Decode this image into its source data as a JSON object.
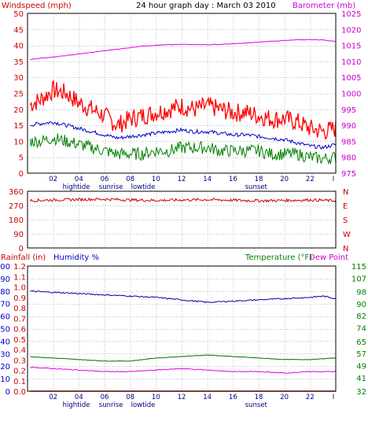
{
  "header": {
    "left_label": "Windspeed (mph)",
    "title": "24 hour graph day : March 03 2010",
    "right_label": "Barometer (mb)"
  },
  "lower_header": {
    "rainfall_label": "Rainfall (in)",
    "humidity_label": "Humidity %",
    "temperature_label": "Temperature (°F)",
    "dewpoint_label": "Dew Point"
  },
  "colors": {
    "windspeed": "#ff0000",
    "windavg": "#0000cc",
    "windgust_low": "#008000",
    "barometer": "#e000e0",
    "direction": "#cc0000",
    "humidity": "#0000aa",
    "temperature": "#007000",
    "dewpoint": "#e000e0",
    "rainfall": "#dd0000",
    "axis_left": "#cc0000",
    "axis_humidity": "#0000cc",
    "axis_right_green": "#008000",
    "axis_baro": "#cc00cc",
    "grid": "#c0c0c0",
    "frame": "#000000"
  },
  "time_axis": {
    "hour_labels": [
      "02",
      "04",
      "06",
      "08",
      "10",
      "12",
      "14",
      "16",
      "18",
      "20",
      "22",
      "I"
    ],
    "events": [
      {
        "label": "hightide",
        "hour": 3.8
      },
      {
        "label": "sunrise",
        "hour": 6.5
      },
      {
        "label": "lowtide",
        "hour": 9.0
      },
      {
        "label": "sunset",
        "hour": 17.8
      }
    ]
  },
  "chart_data": [
    {
      "type": "line",
      "name": "wind-and-barometer",
      "y_left_ticks": [
        0,
        5,
        10,
        15,
        20,
        25,
        30,
        35,
        40,
        45,
        50
      ],
      "y_left_range": [
        0,
        50
      ],
      "y_right_ticks": [
        975,
        980,
        985,
        990,
        995,
        1000,
        1005,
        1010,
        1015,
        1020,
        1025
      ],
      "y_right_range": [
        975,
        1025
      ],
      "x_range_hours": [
        0,
        24
      ],
      "series": [
        {
          "key": "windspeed",
          "axis": "left",
          "x": [
            0,
            1,
            2,
            3,
            4,
            5,
            6,
            7,
            8,
            9,
            10,
            11,
            12,
            13,
            14,
            15,
            16,
            17,
            18,
            19,
            20,
            21,
            22,
            23,
            24
          ],
          "values": [
            21,
            23,
            26,
            25,
            22,
            20,
            18,
            15,
            17,
            18,
            19,
            20,
            21,
            20,
            21,
            20,
            19,
            19,
            18,
            17,
            17,
            16,
            14,
            13,
            14
          ]
        },
        {
          "key": "windavg",
          "axis": "left",
          "x": [
            0,
            1,
            2,
            3,
            4,
            5,
            6,
            7,
            8,
            9,
            10,
            11,
            12,
            13,
            14,
            15,
            16,
            17,
            18,
            19,
            20,
            21,
            22,
            23,
            24
          ],
          "values": [
            15,
            15.5,
            16,
            15,
            14,
            13,
            12,
            11,
            11.5,
            12,
            12.5,
            13,
            13.5,
            13,
            13,
            12.5,
            12,
            12,
            11.5,
            11,
            10.5,
            9.5,
            8.5,
            8,
            9
          ]
        },
        {
          "key": "windgust_low",
          "axis": "left",
          "x": [
            0,
            1,
            2,
            3,
            4,
            5,
            6,
            7,
            8,
            9,
            10,
            11,
            12,
            13,
            14,
            15,
            16,
            17,
            18,
            19,
            20,
            21,
            22,
            23,
            24
          ],
          "values": [
            10,
            10,
            11,
            10,
            9,
            8,
            7,
            6,
            6,
            6,
            7,
            7,
            8,
            8,
            8,
            7,
            7,
            7,
            7,
            6,
            6,
            6,
            5,
            4.5,
            5
          ]
        },
        {
          "key": "barometer",
          "axis": "right",
          "x": [
            0,
            1,
            2,
            3,
            4,
            5,
            6,
            7,
            8,
            9,
            10,
            11,
            12,
            13,
            14,
            15,
            16,
            17,
            18,
            19,
            20,
            21,
            22,
            23,
            24
          ],
          "values": [
            1010.5,
            1011,
            1011.3,
            1011.8,
            1012.3,
            1012.8,
            1013.3,
            1013.8,
            1014.3,
            1014.8,
            1015,
            1015.2,
            1015.3,
            1015.3,
            1015.2,
            1015.3,
            1015.5,
            1015.7,
            1016,
            1016.3,
            1016.5,
            1016.7,
            1016.8,
            1016.7,
            1016.2
          ]
        }
      ]
    },
    {
      "type": "line",
      "name": "wind-direction",
      "y_left_ticks": [
        0,
        90,
        180,
        270,
        360
      ],
      "y_left_range": [
        0,
        360
      ],
      "y_right_labels": [
        "N",
        "E",
        "S",
        "W",
        "N"
      ],
      "series": [
        {
          "key": "direction",
          "axis": "left",
          "x": [
            0,
            2,
            4,
            6,
            8,
            10,
            12,
            14,
            16,
            18,
            20,
            22,
            24
          ],
          "values": [
            300,
            305,
            308,
            310,
            305,
            302,
            305,
            307,
            303,
            300,
            302,
            305,
            300
          ]
        }
      ]
    },
    {
      "type": "line",
      "name": "humidity-temperature",
      "y_left_ticks": [
        0,
        10,
        20,
        30,
        40,
        50,
        60,
        70,
        80,
        90,
        100
      ],
      "y_left_range": [
        0,
        100
      ],
      "y_rain_ticks": [
        "0.0",
        "0.1",
        "0.2",
        "0.3",
        "0.4",
        "0.5",
        "0.6",
        "0.7",
        "0.8",
        "0.9",
        "1.0",
        "1.1",
        "1.2"
      ],
      "y_rain_range": [
        0,
        1.2
      ],
      "y_right_ticks": [
        32,
        41,
        49,
        57,
        65,
        74,
        82,
        90,
        98,
        107,
        115
      ],
      "y_right_range": [
        32,
        115
      ],
      "series": [
        {
          "key": "humidity",
          "axis": "left",
          "x": [
            0,
            2,
            4,
            6,
            8,
            10,
            12,
            14,
            16,
            18,
            20,
            22,
            23,
            24
          ],
          "values": [
            80,
            79,
            78,
            77,
            76,
            75,
            73,
            71,
            72,
            73,
            74,
            75,
            76,
            74
          ]
        },
        {
          "key": "temperature",
          "axis": "right",
          "x": [
            0,
            2,
            4,
            6,
            8,
            10,
            12,
            14,
            16,
            18,
            20,
            22,
            24
          ],
          "values": [
            55,
            54,
            53,
            52,
            52,
            54,
            55,
            56,
            55,
            54,
            53,
            53,
            54
          ]
        },
        {
          "key": "dewpoint",
          "axis": "right",
          "x": [
            0,
            2,
            4,
            6,
            8,
            10,
            12,
            14,
            16,
            18,
            20,
            22,
            24
          ],
          "values": [
            48,
            47,
            46,
            45,
            45,
            46,
            47,
            46,
            45,
            45,
            44,
            45,
            45
          ]
        },
        {
          "key": "rainfall",
          "axis": "rain",
          "x": [
            0,
            24
          ],
          "values": [
            0,
            0
          ]
        }
      ]
    }
  ]
}
